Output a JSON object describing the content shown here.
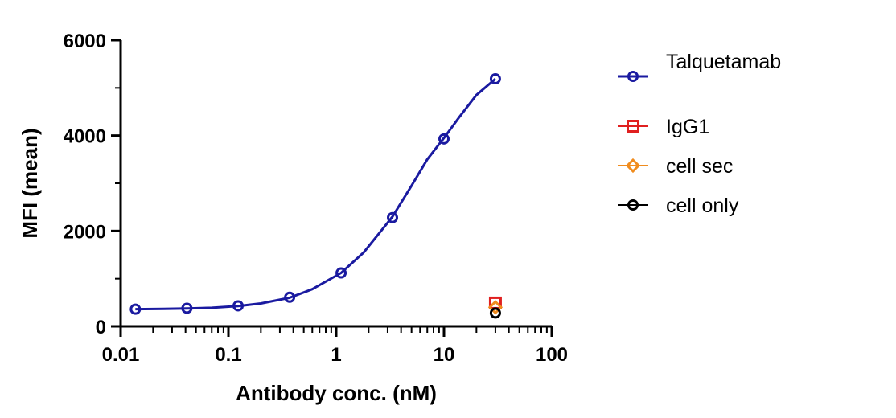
{
  "chart_data": {
    "type": "scatter",
    "xlabel": "Antibody conc. (nM)",
    "ylabel": "MFI (mean)",
    "x_scale": "log",
    "xlim": [
      0.01,
      100
    ],
    "ylim": [
      0,
      6000
    ],
    "x_ticks": [
      {
        "value": 0.01,
        "label": "0.01"
      },
      {
        "value": 0.1,
        "label": "0.1"
      },
      {
        "value": 1,
        "label": "1"
      },
      {
        "value": 10,
        "label": "10"
      },
      {
        "value": 100,
        "label": "100"
      }
    ],
    "y_ticks": [
      {
        "value": 0,
        "label": "0"
      },
      {
        "value": 2000,
        "label": "2000"
      },
      {
        "value": 4000,
        "label": "4000"
      },
      {
        "value": 6000,
        "label": "6000"
      }
    ],
    "grid": false,
    "legend_position": "right",
    "series": [
      {
        "name": "Talquetamab",
        "color": "#1a1aa0",
        "marker": "circle",
        "fit_curve": true,
        "points": [
          {
            "x": 0.0137,
            "y": 360
          },
          {
            "x": 0.0412,
            "y": 380
          },
          {
            "x": 0.123,
            "y": 430
          },
          {
            "x": 0.37,
            "y": 610
          },
          {
            "x": 1.11,
            "y": 1120
          },
          {
            "x": 3.33,
            "y": 2280
          },
          {
            "x": 10,
            "y": 3930
          },
          {
            "x": 30,
            "y": 5190
          }
        ],
        "curve": [
          {
            "x": 0.0137,
            "y": 360
          },
          {
            "x": 0.025,
            "y": 365
          },
          {
            "x": 0.0412,
            "y": 375
          },
          {
            "x": 0.07,
            "y": 390
          },
          {
            "x": 0.123,
            "y": 425
          },
          {
            "x": 0.2,
            "y": 480
          },
          {
            "x": 0.37,
            "y": 600
          },
          {
            "x": 0.6,
            "y": 780
          },
          {
            "x": 1.11,
            "y": 1120
          },
          {
            "x": 1.8,
            "y": 1550
          },
          {
            "x": 2.5,
            "y": 1950
          },
          {
            "x": 3.33,
            "y": 2300
          },
          {
            "x": 5,
            "y": 2950
          },
          {
            "x": 7,
            "y": 3500
          },
          {
            "x": 10,
            "y": 3950
          },
          {
            "x": 14,
            "y": 4400
          },
          {
            "x": 20,
            "y": 4850
          },
          {
            "x": 30,
            "y": 5190
          }
        ]
      },
      {
        "name": "IgG1",
        "color": "#e02020",
        "marker": "square",
        "points": [
          {
            "x": 30,
            "y": 490
          }
        ]
      },
      {
        "name": "cell sec",
        "color": "#f08c1e",
        "marker": "diamond",
        "points": [
          {
            "x": 30,
            "y": 400
          }
        ]
      },
      {
        "name": "cell only",
        "color": "#000000",
        "marker": "circle",
        "points": [
          {
            "x": 30,
            "y": 280
          }
        ]
      }
    ]
  }
}
